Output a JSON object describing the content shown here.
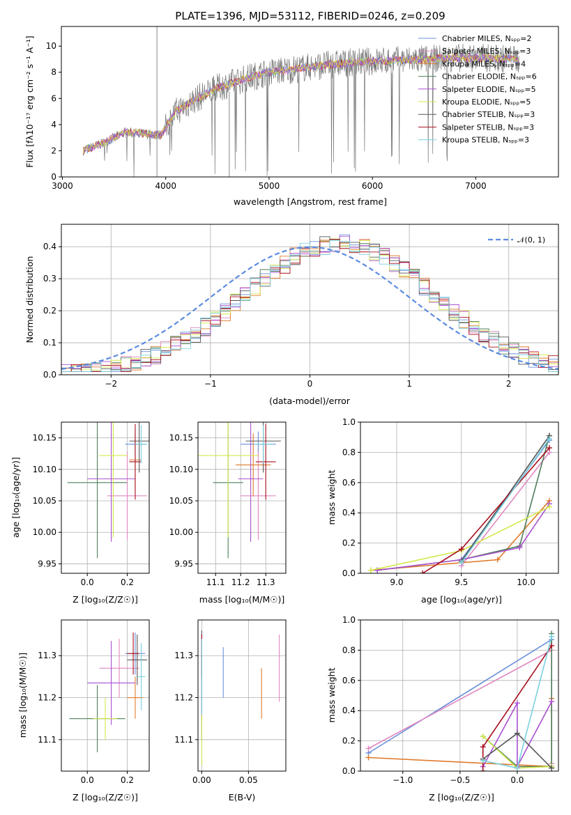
{
  "colors": [
    "#6a8fd8",
    "#e087c0",
    "#e07a2a",
    "#4f7f5a",
    "#a94fd0",
    "#d4e84a",
    "#555555",
    "#a80e1e",
    "#7ad0e0"
  ],
  "chart_data": [
    {
      "id": "spectrum",
      "type": "line",
      "title": "PLATE=1396, MJD=53112, FIBERID=0246, z=0.209",
      "xlabel": "wavelength [Angstrom, rest frame]",
      "ylabel": "Flux [fλ10⁻¹⁷ erg cm⁻² s⁻¹ A⁻¹]",
      "xlim": [
        2990,
        7800
      ],
      "ylim": [
        0,
        11.5
      ],
      "xticks": [
        "3000",
        "4000",
        "5000",
        "6000",
        "7000"
      ],
      "yticks": [
        "0",
        "2",
        "4",
        "6",
        "8",
        "10"
      ],
      "xtick_values": [
        3000,
        4000,
        5000,
        6000,
        7000
      ],
      "ytick_values": [
        0,
        2,
        4,
        6,
        8,
        10
      ],
      "grid": false,
      "legend_position": "right",
      "legend": [
        "Chabrier MILES, Nₛₚₚ=2",
        "Salpeter MILES, Nₛₚₚ=3",
        "Kroupa MILES, Nₛₚₚ=4",
        "Chabrier ELODIE, Nₛₚₚ=6",
        "Salpeter ELODIE, Nₛₚₚ=5",
        "Kroupa ELODIE, Nₛₚₚ=5",
        "Chabrier STELIB, Nₛₚₚ=3",
        "Salpeter STELIB, Nₛₚₚ=3",
        "Kroupa STELIB, Nₛₚₚ=3"
      ],
      "continuum": [
        [
          3200,
          2.0
        ],
        [
          3400,
          2.6
        ],
        [
          3600,
          3.4
        ],
        [
          3800,
          3.3
        ],
        [
          3950,
          3.2
        ],
        [
          4100,
          5.0
        ],
        [
          4300,
          6.0
        ],
        [
          4500,
          6.8
        ],
        [
          4800,
          7.6
        ],
        [
          5000,
          8.0
        ],
        [
          5300,
          8.3
        ],
        [
          5600,
          8.6
        ],
        [
          5900,
          8.8
        ],
        [
          6200,
          8.9
        ],
        [
          6500,
          9.0
        ],
        [
          6800,
          9.1
        ],
        [
          7100,
          9.1
        ],
        [
          7400,
          9.0
        ]
      ]
    },
    {
      "id": "residuals",
      "type": "line",
      "xlabel": "(data-model)/error",
      "ylabel": "Normed distribution",
      "xlim": [
        -2.5,
        2.5
      ],
      "ylim": [
        0,
        0.47
      ],
      "xticks": [
        "−2",
        "−1",
        "0",
        "1",
        "2"
      ],
      "yticks": [
        "0.0",
        "0.1",
        "0.2",
        "0.3",
        "0.4"
      ],
      "xtick_values": [
        -2,
        -1,
        0,
        1,
        2
      ],
      "ytick_values": [
        0,
        0.1,
        0.2,
        0.3,
        0.4
      ],
      "grid": true,
      "legend": [
        "𝒩(0, 1)"
      ],
      "legend_position": "top-right"
    },
    {
      "id": "age-vs-Z",
      "type": "scatter",
      "xlabel": "Z [log₁₀(Z/Z☉)]",
      "ylabel": "age  [log₁₀(age/yr)]",
      "xlim": [
        -0.13,
        0.31
      ],
      "ylim": [
        9.935,
        10.175
      ],
      "xticks": [
        "0.0",
        "0.2"
      ],
      "xtick_values": [
        0,
        0.2
      ],
      "yticks": [
        "9.95",
        "10.00",
        "10.05",
        "10.10",
        "10.15"
      ],
      "ytick_values": [
        9.95,
        10.0,
        10.05,
        10.1,
        10.15
      ],
      "grid": true,
      "points": [
        {
          "x": 0.24,
          "y": 10.14,
          "xerr": 0.05,
          "yerr": 0.02
        },
        {
          "x": 0.2,
          "y": 10.058,
          "xerr": 0.1,
          "yerr": 0.07
        },
        {
          "x": 0.24,
          "y": 10.115,
          "xerr": 0.03,
          "yerr": 0.05
        },
        {
          "x": 0.05,
          "y": 10.079,
          "xerr": 0.15,
          "yerr": 0.12
        },
        {
          "x": 0.12,
          "y": 10.085,
          "xerr": 0.12,
          "yerr": 0.1
        },
        {
          "x": 0.13,
          "y": 10.122,
          "xerr": 0.07,
          "yerr": 0.13
        },
        {
          "x": 0.26,
          "y": 10.145,
          "xerr": 0.05,
          "yerr": 0.05
        },
        {
          "x": 0.24,
          "y": 10.112,
          "xerr": 0.03,
          "yerr": 0.06
        },
        {
          "x": 0.27,
          "y": 10.14,
          "xerr": 0.03,
          "yerr": 0.03
        }
      ]
    },
    {
      "id": "age-vs-mass",
      "type": "scatter",
      "xlabel": "mass [log₁₀(M/M☉)]",
      "ylabel": "",
      "xlim": [
        11.03,
        11.38
      ],
      "ylim": [
        9.935,
        10.175
      ],
      "xticks": [
        "11.1",
        "11.2",
        "11.3"
      ],
      "xtick_values": [
        11.1,
        11.2,
        11.3
      ],
      "yticks": [
        "9.95",
        "10.00",
        "10.05",
        "10.10",
        "10.15"
      ],
      "ytick_values": [
        9.95,
        10.0,
        10.05,
        10.1,
        10.15
      ],
      "grid": true,
      "points": [
        {
          "x": 11.27,
          "y": 10.14,
          "xerr": 0.07,
          "yerr": 0.02
        },
        {
          "x": 11.27,
          "y": 10.058,
          "xerr": 0.07,
          "yerr": 0.07
        },
        {
          "x": 11.25,
          "y": 10.107,
          "xerr": 0.07,
          "yerr": 0.05
        },
        {
          "x": 11.15,
          "y": 10.079,
          "xerr": 0.06,
          "yerr": 0.12
        },
        {
          "x": 11.24,
          "y": 10.085,
          "xerr": 0.05,
          "yerr": 0.1
        },
        {
          "x": 11.15,
          "y": 10.122,
          "xerr": 0.12,
          "yerr": 0.13
        },
        {
          "x": 11.29,
          "y": 10.145,
          "xerr": 0.07,
          "yerr": 0.05
        },
        {
          "x": 11.3,
          "y": 10.112,
          "xerr": 0.04,
          "yerr": 0.06
        },
        {
          "x": 11.29,
          "y": 10.14,
          "xerr": 0.04,
          "yerr": 0.03
        }
      ]
    },
    {
      "id": "weight-vs-age",
      "type": "line",
      "xlabel": "age  [log₁₀(age/yr)]",
      "ylabel": "mass weight",
      "xlim": [
        8.72,
        10.25
      ],
      "ylim": [
        0,
        1.0
      ],
      "xticks": [
        "9.0",
        "9.5",
        "10.0"
      ],
      "xtick_values": [
        9.0,
        9.5,
        10.0
      ],
      "yticks": [
        "0.0",
        "0.2",
        "0.4",
        "0.6",
        "0.8",
        "1.0"
      ],
      "ytick_values": [
        0,
        0.2,
        0.4,
        0.6,
        0.8,
        1.0
      ],
      "grid": true,
      "series": [
        {
          "x": [
            9.5,
            10.18
          ],
          "y": [
            0.09,
            0.88
          ]
        },
        {
          "x": [
            9.5,
            10.18
          ],
          "y": [
            0.05,
            0.8
          ]
        },
        {
          "x": [
            8.8,
            9.78,
            10.18
          ],
          "y": [
            0.02,
            0.09,
            0.48
          ]
        },
        {
          "x": [
            8.85,
            9.5,
            9.95,
            10.18
          ],
          "y": [
            0.02,
            0.09,
            0.18,
            0.91
          ]
        },
        {
          "x": [
            8.85,
            9.5,
            9.95,
            10.18
          ],
          "y": [
            0.02,
            0.09,
            0.17,
            0.46
          ]
        },
        {
          "x": [
            8.8,
            9.5,
            10.18
          ],
          "y": [
            0.02,
            0.15,
            0.44
          ]
        },
        {
          "x": [
            9.5,
            10.18
          ],
          "y": [
            0.08,
            0.91
          ]
        },
        {
          "x": [
            9.2,
            9.5,
            10.18
          ],
          "y": [
            0.0,
            0.16,
            0.83
          ]
        },
        {
          "x": [
            9.5,
            10.18
          ],
          "y": [
            0.07,
            0.89
          ]
        }
      ]
    },
    {
      "id": "mass-vs-Z",
      "type": "scatter",
      "xlabel": "Z [log₁₀(Z/Z☉)]",
      "ylabel": "mass [log₁₀(M/M☉)]",
      "xlim": [
        -0.13,
        0.31
      ],
      "ylim": [
        11.025,
        11.385
      ],
      "xticks": [
        "0.0",
        "0.2"
      ],
      "xtick_values": [
        0,
        0.2
      ],
      "yticks": [
        "11.1",
        "11.2",
        "11.3"
      ],
      "ytick_values": [
        11.1,
        11.2,
        11.3
      ],
      "grid": true,
      "points": [
        {
          "x": 0.24,
          "y": 11.305,
          "xerr": 0.05,
          "yerr": 0.05
        },
        {
          "x": 0.16,
          "y": 11.27,
          "xerr": 0.1,
          "yerr": 0.07
        },
        {
          "x": 0.24,
          "y": 11.2,
          "xerr": 0.04,
          "yerr": 0.05
        },
        {
          "x": 0.05,
          "y": 11.15,
          "xerr": 0.14,
          "yerr": 0.08
        },
        {
          "x": 0.12,
          "y": 11.235,
          "xerr": 0.12,
          "yerr": 0.1
        },
        {
          "x": 0.09,
          "y": 11.15,
          "xerr": 0.06,
          "yerr": 0.05
        },
        {
          "x": 0.25,
          "y": 11.29,
          "xerr": 0.05,
          "yerr": 0.06
        },
        {
          "x": 0.23,
          "y": 11.305,
          "xerr": 0.03,
          "yerr": 0.05
        },
        {
          "x": 0.27,
          "y": 11.25,
          "xerr": 0.02,
          "yerr": 0.08
        }
      ]
    },
    {
      "id": "mass-vs-EBV",
      "type": "scatter",
      "xlabel": "E(B-V)",
      "ylabel": "",
      "xlim": [
        -0.004,
        0.09
      ],
      "ylim": [
        11.025,
        11.385
      ],
      "xticks": [
        "0.00",
        "0.05"
      ],
      "xtick_values": [
        0,
        0.05
      ],
      "yticks": [
        "11.1",
        "11.2",
        "11.3"
      ],
      "ytick_values": [
        11.1,
        11.2,
        11.3
      ],
      "grid": true,
      "points": [
        {
          "x": 0.023,
          "y": 11.26,
          "xerr": 0,
          "yerr": 0.06
        },
        {
          "x": 0.083,
          "y": 11.27,
          "xerr": 0,
          "yerr": 0.08
        },
        {
          "x": 0.064,
          "y": 11.21,
          "xerr": 0,
          "yerr": 0.06
        },
        {
          "x": 0.0,
          "y": 11.2,
          "xerr": 0,
          "yerr": 0.1
        },
        {
          "x": 0.0,
          "y": 11.25,
          "xerr": 0,
          "yerr": 0.1
        },
        {
          "x": 0.0,
          "y": 11.1,
          "xerr": 0,
          "yerr": 0.06
        },
        {
          "x": 0.0,
          "y": 11.3,
          "xerr": 0,
          "yerr": 0.06
        },
        {
          "x": 0.0,
          "y": 11.3,
          "xerr": 0,
          "yerr": 0.05
        },
        {
          "x": 0.0,
          "y": 11.25,
          "xerr": 0,
          "yerr": 0.09
        }
      ]
    },
    {
      "id": "weight-vs-Z",
      "type": "line",
      "xlabel": "Z [log₁₀(Z/Z☉)]",
      "ylabel": "mass weight",
      "xlim": [
        -1.37,
        0.36
      ],
      "ylim": [
        0,
        1.0
      ],
      "xticks": [
        "−1.0",
        "−0.5",
        "0.0"
      ],
      "xtick_values": [
        -1.0,
        -0.5,
        0.0
      ],
      "yticks": [
        "0.0",
        "0.2",
        "0.4",
        "0.6",
        "0.8",
        "1.0"
      ],
      "ytick_values": [
        0,
        0.2,
        0.4,
        0.6,
        0.8,
        1.0
      ],
      "grid": true,
      "series": [
        {
          "x": [
            -1.3,
            0.3
          ],
          "y": [
            0.12,
            0.87
          ]
        },
        {
          "x": [
            -1.3,
            0.3,
            0.3
          ],
          "y": [
            0.15,
            0.8,
            0.05
          ]
        },
        {
          "x": [
            -1.3,
            0.3,
            0.3
          ],
          "y": [
            0.09,
            0.03,
            0.48
          ]
        },
        {
          "x": [
            -0.3,
            0.0,
            0.3,
            0.3
          ],
          "y": [
            0.23,
            0.03,
            0.03,
            0.91
          ]
        },
        {
          "x": [
            -0.3,
            0.0,
            0.0,
            0.3
          ],
          "y": [
            0.03,
            0.45,
            0.03,
            0.46
          ]
        },
        {
          "x": [
            -0.3,
            0.0,
            0.3
          ],
          "y": [
            0.23,
            0.02,
            0.03
          ]
        },
        {
          "x": [
            -0.3,
            0.0,
            0.3
          ],
          "y": [
            0.08,
            0.25,
            0.02
          ]
        },
        {
          "x": [
            -0.3,
            -0.3,
            0.3
          ],
          "y": [
            0.0,
            0.16,
            0.83
          ]
        },
        {
          "x": [
            -0.3,
            0.0,
            0.3
          ],
          "y": [
            0.07,
            0.02,
            0.89
          ]
        }
      ]
    }
  ]
}
